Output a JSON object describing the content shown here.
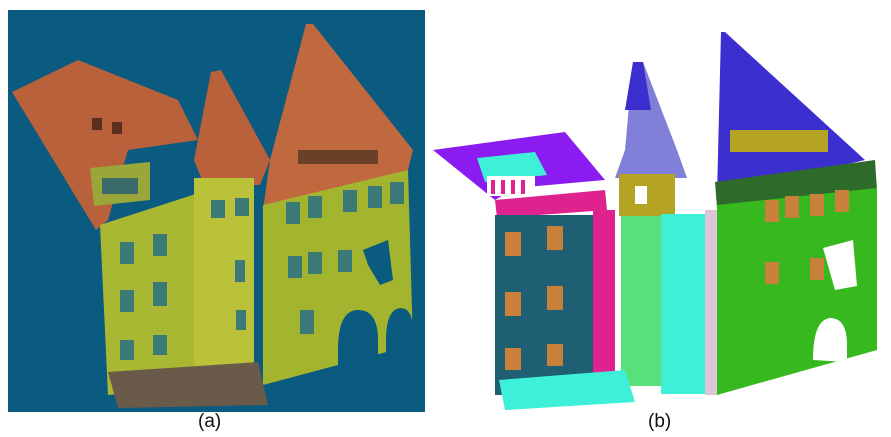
{
  "captions": {
    "a": "(a)",
    "b": "(b)"
  },
  "colors": {
    "panel_a_background": "#0b5a7f",
    "roof_brown": "#b8613a",
    "facade_olive": "#a9b833",
    "segment_blue_roof": "#3c2fd0",
    "segment_green": "#36b81e",
    "segment_teal": "#1f5f74",
    "segment_cyan": "#3ff0d8",
    "segment_magenta": "#e0228e",
    "segment_lightgreen": "#58e07a",
    "segment_purple": "#8a1cf0",
    "segment_olive": "#b5a423",
    "segment_pink": "#ddc6d8",
    "window_wood": "#c8803a"
  }
}
